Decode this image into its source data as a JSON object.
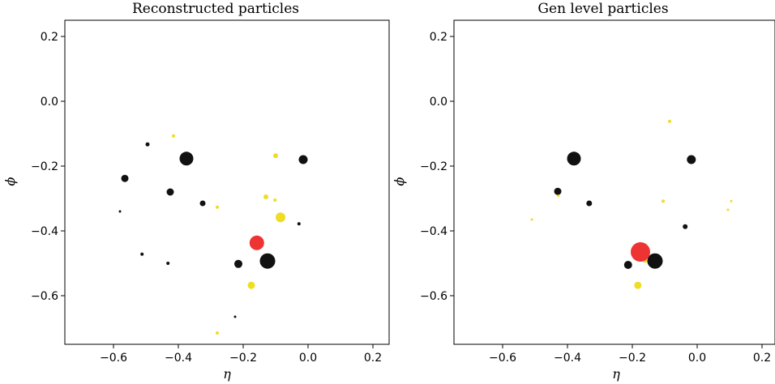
{
  "chart_data": [
    {
      "type": "scatter",
      "title": "Reconstructed particles",
      "xlabel": "η",
      "ylabel": "ϕ",
      "xlim": [
        -0.75,
        0.25
      ],
      "ylim": [
        -0.75,
        0.25
      ],
      "xticks": [
        -0.6,
        -0.4,
        -0.2,
        0.0,
        0.2
      ],
      "xtick_labels": [
        "−0.6",
        "−0.4",
        "−0.2",
        "0.0",
        "0.2"
      ],
      "yticks": [
        0.2,
        0.0,
        -0.2,
        -0.4,
        -0.6
      ],
      "ytick_labels": [
        "0.2",
        "0.0",
        "−0.2",
        "−0.4",
        "−0.6"
      ],
      "grid": false,
      "series": [
        {
          "color": "#111111",
          "points": [
            {
              "x": -0.495,
              "y": -0.133,
              "size": 5
            },
            {
              "x": -0.375,
              "y": -0.177,
              "size": 17
            },
            {
              "x": -0.015,
              "y": -0.18,
              "size": 11
            },
            {
              "x": -0.565,
              "y": -0.238,
              "size": 9
            },
            {
              "x": -0.425,
              "y": -0.28,
              "size": 9
            },
            {
              "x": -0.325,
              "y": -0.315,
              "size": 7
            },
            {
              "x": -0.58,
              "y": -0.34,
              "size": 3
            },
            {
              "x": -0.028,
              "y": -0.378,
              "size": 4
            },
            {
              "x": -0.512,
              "y": -0.472,
              "size": 4
            },
            {
              "x": -0.432,
              "y": -0.5,
              "size": 4
            },
            {
              "x": -0.215,
              "y": -0.502,
              "size": 10
            },
            {
              "x": -0.125,
              "y": -0.493,
              "size": 19
            },
            {
              "x": -0.225,
              "y": -0.665,
              "size": 3
            }
          ]
        },
        {
          "color": "#eedd22",
          "points": [
            {
              "x": -0.415,
              "y": -0.107,
              "size": 4
            },
            {
              "x": -0.1,
              "y": -0.168,
              "size": 6
            },
            {
              "x": -0.13,
              "y": -0.295,
              "size": 6
            },
            {
              "x": -0.102,
              "y": -0.305,
              "size": 4
            },
            {
              "x": -0.28,
              "y": -0.327,
              "size": 4
            },
            {
              "x": -0.085,
              "y": -0.358,
              "size": 12
            },
            {
              "x": -0.175,
              "y": -0.568,
              "size": 9
            },
            {
              "x": -0.28,
              "y": -0.715,
              "size": 4
            }
          ]
        },
        {
          "color": "#ee3333",
          "points": [
            {
              "x": -0.158,
              "y": -0.437,
              "size": 18
            }
          ]
        }
      ]
    },
    {
      "type": "scatter",
      "title": "Gen level particles",
      "xlabel": "η",
      "ylabel": "ϕ",
      "xlim": [
        -0.75,
        0.25
      ],
      "ylim": [
        -0.75,
        0.25
      ],
      "xticks": [
        -0.6,
        -0.4,
        -0.2,
        0.0,
        0.2
      ],
      "xtick_labels": [
        "−0.6",
        "−0.4",
        "−0.2",
        "0.0",
        "0.2"
      ],
      "yticks": [
        0.2,
        0.0,
        -0.2,
        -0.4,
        -0.6
      ],
      "ytick_labels": [
        "0.2",
        "0.0",
        "−0.2",
        "−0.4",
        "−0.6"
      ],
      "grid": false,
      "series": [
        {
          "color": "#111111",
          "points": [
            {
              "x": -0.38,
              "y": -0.177,
              "size": 17
            },
            {
              "x": -0.018,
              "y": -0.18,
              "size": 11
            },
            {
              "x": -0.43,
              "y": -0.278,
              "size": 9
            },
            {
              "x": -0.333,
              "y": -0.315,
              "size": 7
            },
            {
              "x": -0.037,
              "y": -0.387,
              "size": 6
            },
            {
              "x": -0.213,
              "y": -0.505,
              "size": 10
            },
            {
              "x": -0.13,
              "y": -0.493,
              "size": 19
            }
          ]
        },
        {
          "color": "#eedd22",
          "points": [
            {
              "x": -0.085,
              "y": -0.062,
              "size": 4
            },
            {
              "x": -0.105,
              "y": -0.308,
              "size": 4
            },
            {
              "x": 0.105,
              "y": -0.308,
              "size": 3
            },
            {
              "x": 0.095,
              "y": -0.335,
              "size": 3
            },
            {
              "x": -0.51,
              "y": -0.365,
              "size": 3
            },
            {
              "x": -0.428,
              "y": -0.292,
              "size": 3
            },
            {
              "x": -0.16,
              "y": -0.492,
              "size": 5
            },
            {
              "x": -0.183,
              "y": -0.568,
              "size": 9
            }
          ]
        },
        {
          "color": "#ee3333",
          "points": [
            {
              "x": -0.175,
              "y": -0.465,
              "size": 24
            }
          ]
        }
      ]
    }
  ]
}
